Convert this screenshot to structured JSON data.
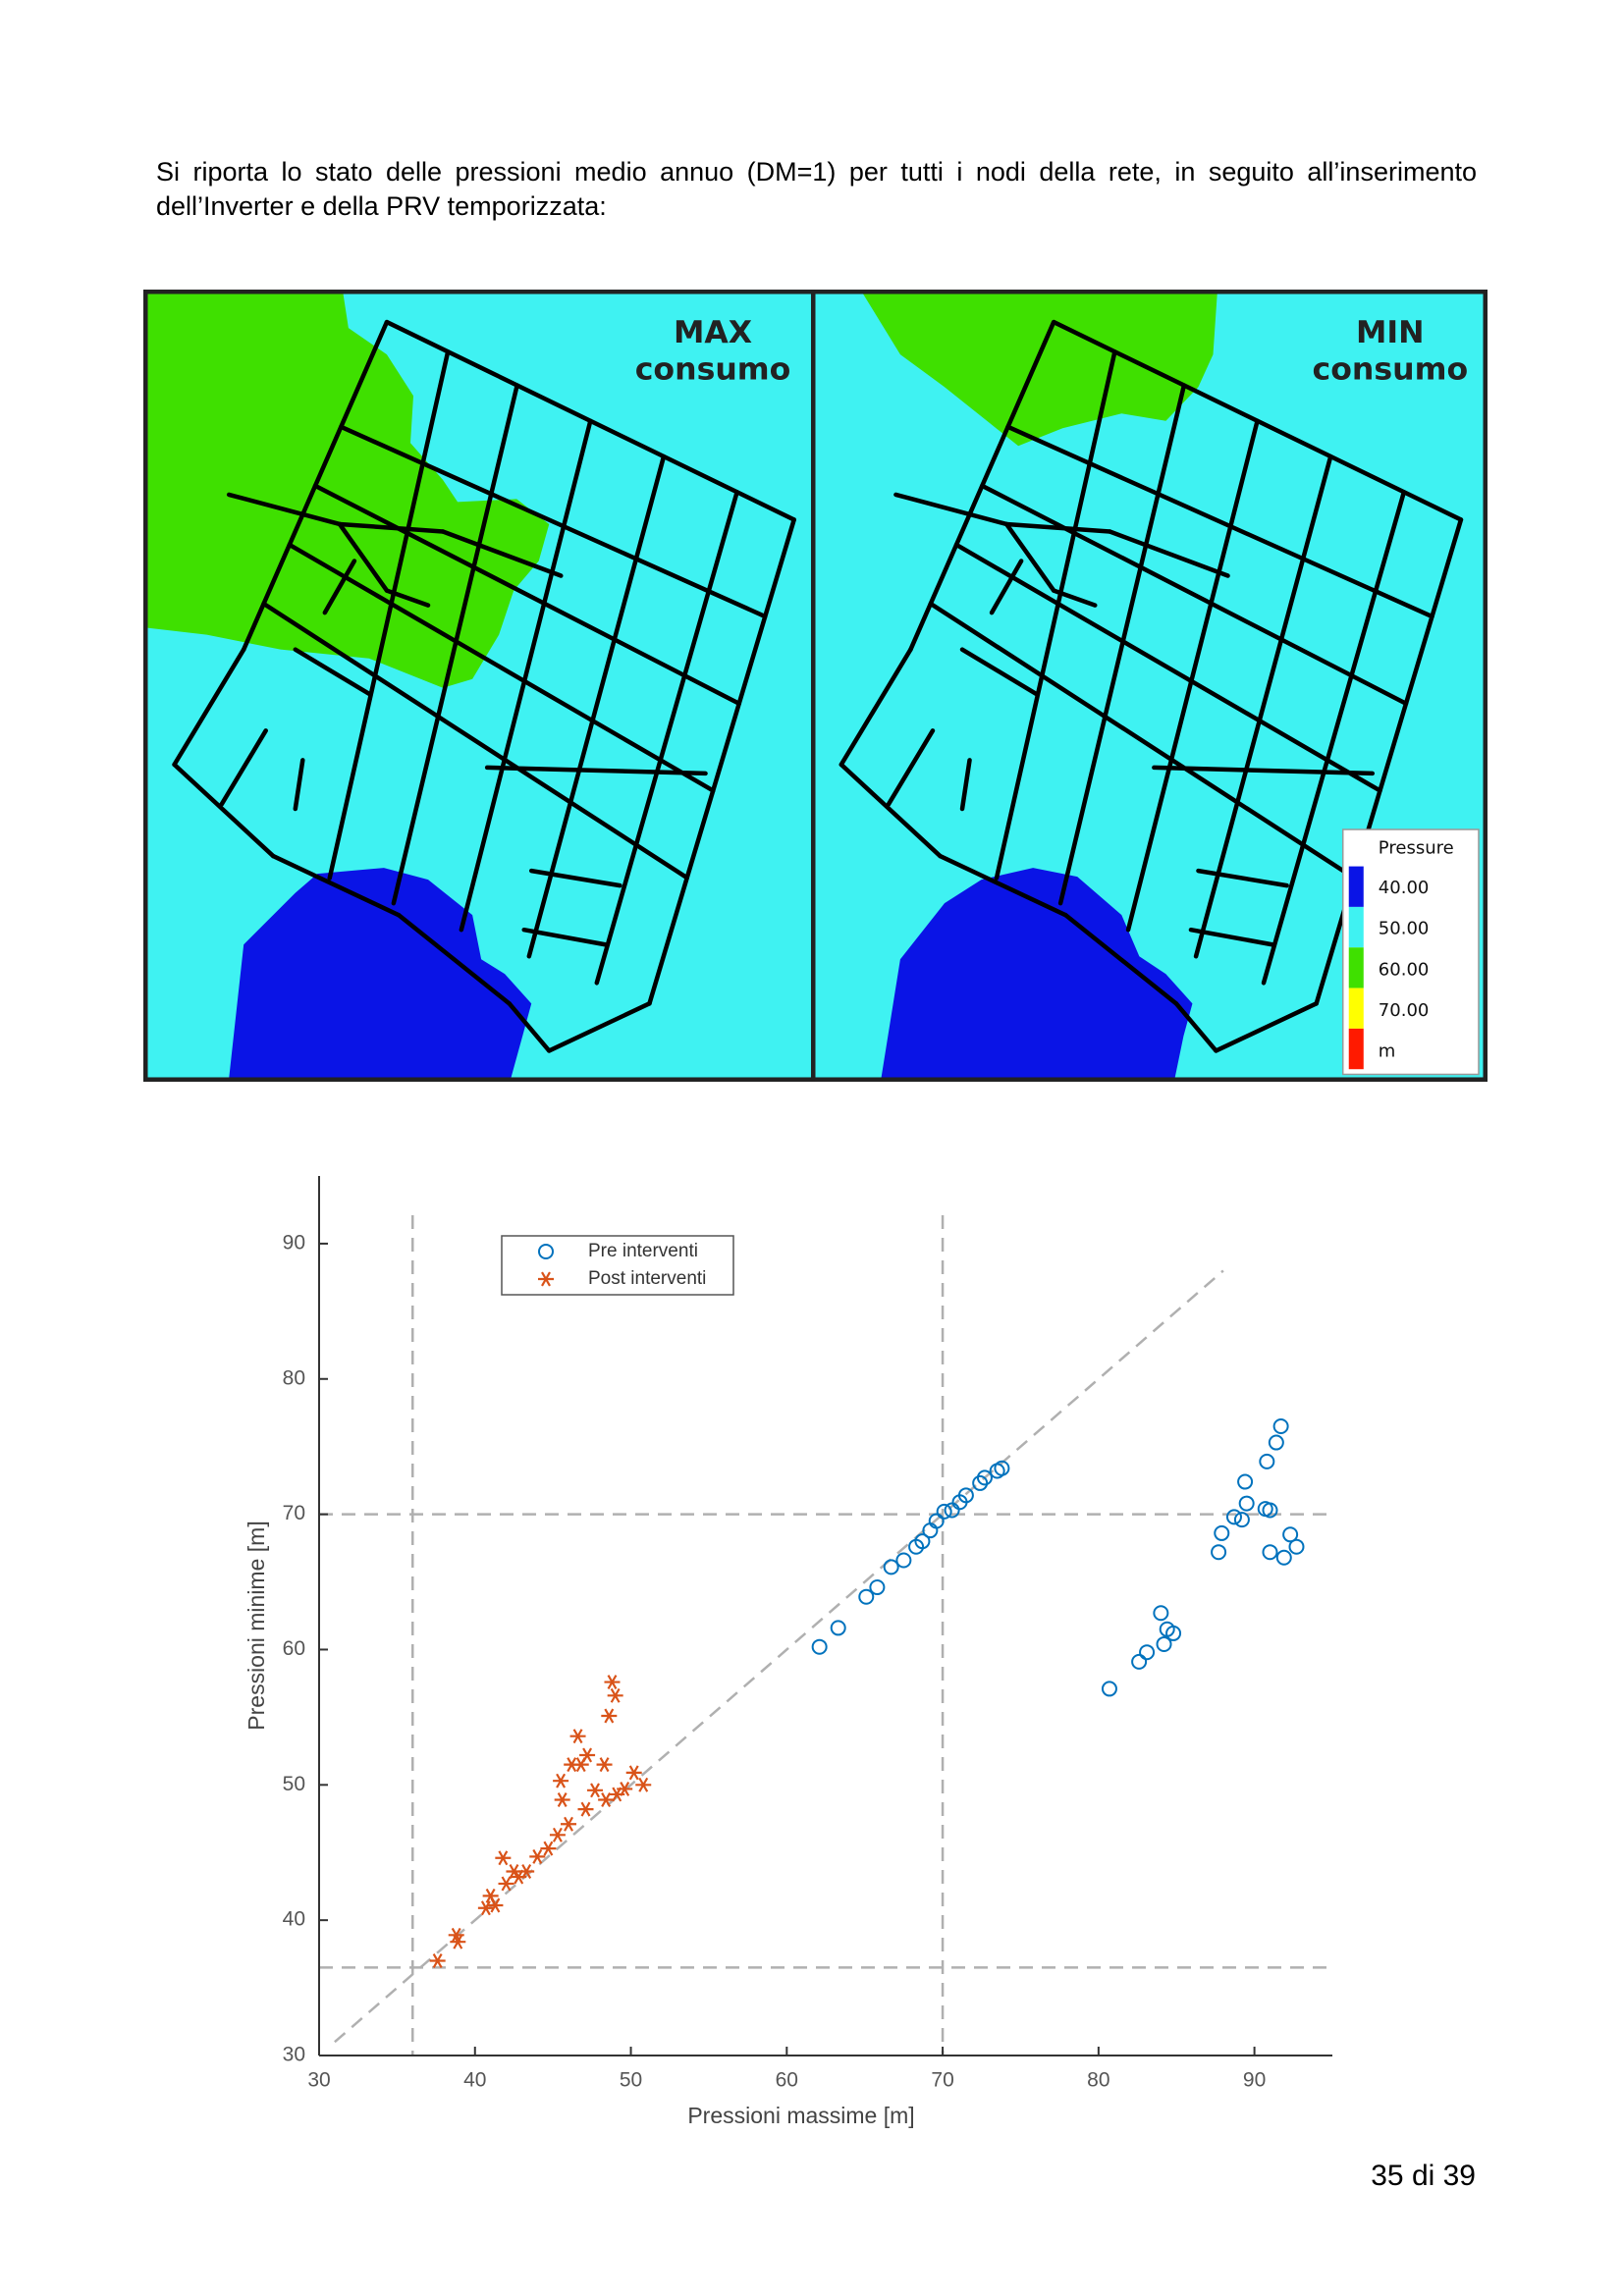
{
  "paragraph": "Si riporta lo stato delle pressioni medio annuo (DM=1) per tutti i nodi della rete, in seguito all’inserimento dell’Inverter e della PRV temporizzata:",
  "maps": {
    "panels": [
      {
        "title_line1": "MAX",
        "title_line2": "consumo"
      },
      {
        "title_line1": "MIN",
        "title_line2": "consumo"
      }
    ],
    "legend": {
      "title": "Pressure",
      "labels": [
        "40.00",
        "50.00",
        "60.00",
        "70.00",
        "m"
      ],
      "colors": [
        "#0a14e6",
        "#3ff2f2",
        "#3fe000",
        "#ffff00",
        "#ff1a00"
      ]
    }
  },
  "chart_data": {
    "type": "scatter",
    "xlabel": "Pressioni massime [m]",
    "ylabel": "Pressioni minime [m]",
    "xlim": [
      30,
      95
    ],
    "ylim": [
      30,
      95
    ],
    "xticks": [
      30,
      40,
      50,
      60,
      70,
      80,
      90
    ],
    "yticks": [
      30,
      40,
      50,
      60,
      70,
      80,
      90
    ],
    "grid": false,
    "legend": "upper left",
    "vlines": [
      36,
      70
    ],
    "hlines": [
      36.5,
      70
    ],
    "identity_line": [
      31,
      88
    ],
    "series": [
      {
        "name": "Pre interventi",
        "color": "#0072bd",
        "marker": "circle",
        "x": [
          62.1,
          63.3,
          65.1,
          65.8,
          66.7,
          67.5,
          68.3,
          68.7,
          69.2,
          69.6,
          70.1,
          70.6,
          71.1,
          71.5,
          72.4,
          72.7,
          73.5,
          73.8,
          80.7,
          82.6,
          83.1,
          84.2,
          84.0,
          84.4,
          84.8,
          87.7,
          87.9,
          88.7,
          89.2,
          89.4,
          89.5,
          90.7,
          91.0,
          90.8,
          91.0,
          91.4,
          91.7,
          91.9,
          92.3,
          92.7
        ],
        "values": [
          60.2,
          61.6,
          63.9,
          64.6,
          66.1,
          66.6,
          67.6,
          68.0,
          68.8,
          69.5,
          70.2,
          70.3,
          70.9,
          71.4,
          72.3,
          72.7,
          73.2,
          73.4,
          57.1,
          59.1,
          59.8,
          60.4,
          62.7,
          61.5,
          61.2,
          67.2,
          68.6,
          69.8,
          69.6,
          72.4,
          70.8,
          70.4,
          70.3,
          73.9,
          67.2,
          75.3,
          76.5,
          66.8,
          68.5,
          67.6
        ]
      },
      {
        "name": "Post interventi",
        "color": "#d95319",
        "marker": "star",
        "x": [
          37.6,
          38.8,
          38.9,
          40.7,
          41.0,
          41.3,
          41.8,
          42.0,
          42.5,
          42.8,
          43.3,
          44.0,
          44.7,
          45.3,
          45.6,
          45.5,
          46.0,
          46.2,
          46.6,
          46.8,
          47.1,
          47.2,
          47.7,
          48.3,
          48.4,
          48.6,
          48.8,
          49.0,
          49.1,
          49.6,
          50.2,
          50.8
        ],
        "values": [
          37.0,
          38.9,
          38.4,
          40.9,
          41.8,
          41.1,
          44.6,
          42.7,
          43.6,
          43.2,
          43.6,
          44.7,
          45.3,
          46.3,
          48.9,
          50.3,
          47.1,
          51.5,
          53.6,
          51.5,
          48.2,
          52.2,
          49.6,
          51.5,
          48.9,
          55.1,
          57.6,
          56.6,
          49.3,
          49.7,
          50.9,
          50.0
        ]
      }
    ]
  },
  "page_number": "35 di 39"
}
